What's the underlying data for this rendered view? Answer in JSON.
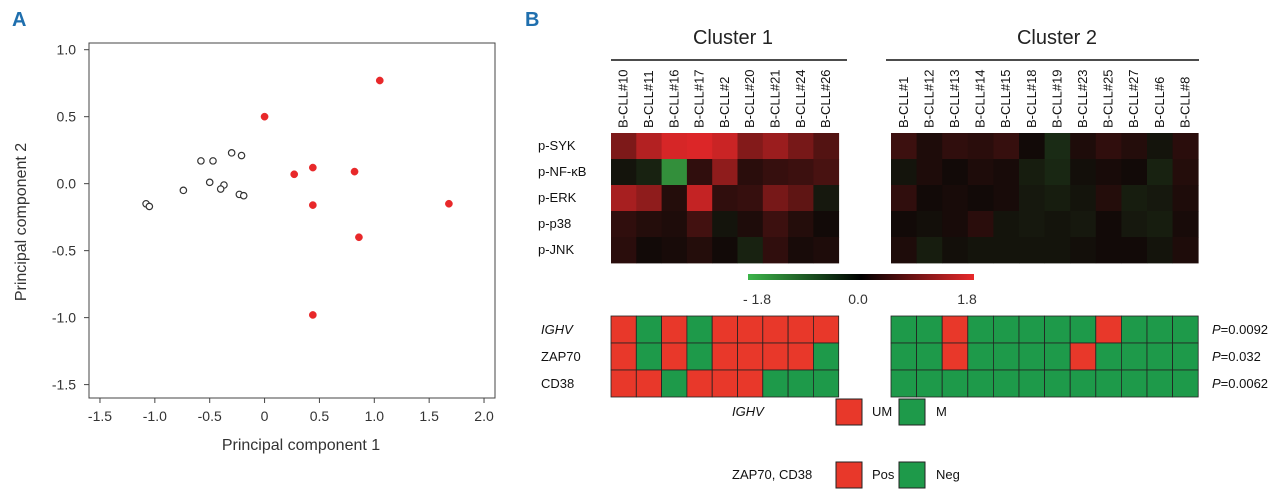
{
  "chart_data": [
    {
      "type": "scatter",
      "panel_label": "A",
      "xlabel": "Principal component 1",
      "ylabel": "Principal component 2",
      "xlim": [
        -1.6,
        2.1
      ],
      "ylim": [
        -1.6,
        1.05
      ],
      "xticks": [
        -1.5,
        -1.0,
        -0.5,
        0.0,
        0.5,
        1.0,
        1.5,
        2.0
      ],
      "xtick_labels": [
        "-1.5",
        "-1.0",
        "-0.5",
        "0",
        "0.5",
        "1.0",
        "1.5",
        "2.0"
      ],
      "yticks": [
        1.0,
        0.5,
        0.0,
        -0.5,
        -1.0,
        -1.5
      ],
      "ytick_labels": [
        "1.0",
        "0.5",
        "0.0",
        "-0.5",
        "-1.0",
        "-1.5"
      ],
      "series": [
        {
          "name": "Cluster 1",
          "marker": "filled circle",
          "color": "#e8282a",
          "points": [
            [
              0.0,
              0.5
            ],
            [
              1.05,
              0.77
            ],
            [
              0.27,
              0.07
            ],
            [
              0.44,
              0.12
            ],
            [
              0.82,
              0.09
            ],
            [
              0.44,
              -0.16
            ],
            [
              1.68,
              -0.15
            ],
            [
              0.86,
              -0.4
            ],
            [
              0.44,
              -0.98
            ]
          ]
        },
        {
          "name": "Cluster 2",
          "marker": "open circle",
          "color": "#333333",
          "points": [
            [
              -0.58,
              0.17
            ],
            [
              -0.47,
              0.17
            ],
            [
              -0.3,
              0.23
            ],
            [
              -0.21,
              0.21
            ],
            [
              -0.5,
              0.01
            ],
            [
              -0.37,
              -0.01
            ],
            [
              -0.4,
              -0.04
            ],
            [
              -0.23,
              -0.08
            ],
            [
              -0.19,
              -0.09
            ],
            [
              -0.74,
              -0.05
            ],
            [
              -1.08,
              -0.15
            ],
            [
              -1.05,
              -0.17
            ]
          ]
        }
      ]
    },
    {
      "type": "heatmap",
      "panel_label": "B",
      "clusters": [
        {
          "title": "Cluster 1",
          "samples": [
            "B-CLL#10",
            "B-CLL#11",
            "B-CLL#16",
            "B-CLL#17",
            "B-CLL#2",
            "B-CLL#20",
            "B-CLL#21",
            "B-CLL#24",
            "B-CLL#26"
          ]
        },
        {
          "title": "Cluster 2",
          "samples": [
            "B-CLL#1",
            "B-CLL#12",
            "B-CLL#13",
            "B-CLL#14",
            "B-CLL#15",
            "B-CLL#18",
            "B-CLL#19",
            "B-CLL#23",
            "B-CLL#25",
            "B-CLL#27",
            "B-CLL#6",
            "B-CLL#8"
          ]
        }
      ],
      "rows": [
        "p-SYK",
        "p-NF-κB",
        "p-ERK",
        "p-p38",
        "p-JNK"
      ],
      "values": {
        "cluster1": [
          [
            0.9,
            1.35,
            1.65,
            1.7,
            1.55,
            0.95,
            1.15,
            0.85,
            0.55
          ],
          [
            -0.1,
            -0.25,
            -1.4,
            0.25,
            1.05,
            0.2,
            0.3,
            0.35,
            0.45
          ],
          [
            1.25,
            1.05,
            0.15,
            1.5,
            0.25,
            0.3,
            0.85,
            0.65,
            -0.15
          ],
          [
            0.25,
            0.15,
            0.1,
            0.4,
            -0.1,
            0.1,
            0.35,
            0.15,
            0.0
          ],
          [
            0.2,
            0.0,
            0.05,
            0.15,
            0.0,
            -0.25,
            0.25,
            0.05,
            0.1
          ]
        ],
        "cluster2": [
          [
            0.35,
            0.1,
            0.25,
            0.2,
            0.3,
            0.0,
            -0.35,
            0.1,
            0.25,
            0.15,
            -0.1,
            0.2
          ],
          [
            -0.1,
            0.1,
            0.0,
            0.1,
            0.05,
            -0.2,
            -0.3,
            -0.05,
            0.05,
            0.0,
            -0.25,
            0.15
          ],
          [
            0.25,
            0.0,
            0.05,
            0.0,
            0.05,
            -0.15,
            -0.2,
            -0.1,
            0.15,
            -0.2,
            -0.15,
            0.1
          ],
          [
            0.0,
            -0.05,
            0.05,
            0.2,
            -0.1,
            -0.15,
            -0.1,
            -0.15,
            0.0,
            -0.15,
            -0.2,
            0.05
          ],
          [
            0.1,
            -0.2,
            -0.05,
            -0.1,
            -0.1,
            -0.1,
            -0.1,
            -0.05,
            0.0,
            0.0,
            -0.1,
            0.1
          ]
        ]
      },
      "colorbar": {
        "min": -1.8,
        "mid": 0.0,
        "max": 1.8,
        "labels": [
          "- 1.8",
          "0.0",
          "1.8"
        ],
        "low_color": "#3cb54a",
        "mid_color": "#000000",
        "high_color": "#e8282a"
      },
      "clinical": {
        "rows": [
          "IGHV",
          "ZAP70",
          "CD38"
        ],
        "cluster1": [
          [
            1,
            0,
            1,
            0,
            1,
            1,
            1,
            1,
            1
          ],
          [
            1,
            0,
            1,
            0,
            1,
            1,
            1,
            1,
            0
          ],
          [
            1,
            1,
            0,
            1,
            1,
            1,
            0,
            0,
            0
          ]
        ],
        "cluster2": [
          [
            0,
            0,
            1,
            0,
            0,
            0,
            0,
            0,
            1,
            0,
            0,
            0
          ],
          [
            0,
            0,
            1,
            0,
            0,
            0,
            0,
            1,
            0,
            0,
            0,
            0
          ],
          [
            0,
            0,
            0,
            0,
            0,
            0,
            0,
            0,
            0,
            0,
            0,
            0
          ]
        ],
        "p_values": [
          {
            "p": "P",
            "value": "=0.0092"
          },
          {
            "p": "P",
            "value": "=0.032"
          },
          {
            "p": "P",
            "value": "=0.0062"
          }
        ],
        "pos_color": "#e8382a",
        "neg_color": "#1e9a4a"
      },
      "legend": [
        {
          "label": "IGHV",
          "pos_label": "UM",
          "neg_label": "M"
        },
        {
          "label": "ZAP70, CD38",
          "pos_label": "Pos",
          "neg_label": "Neg"
        }
      ]
    }
  ]
}
